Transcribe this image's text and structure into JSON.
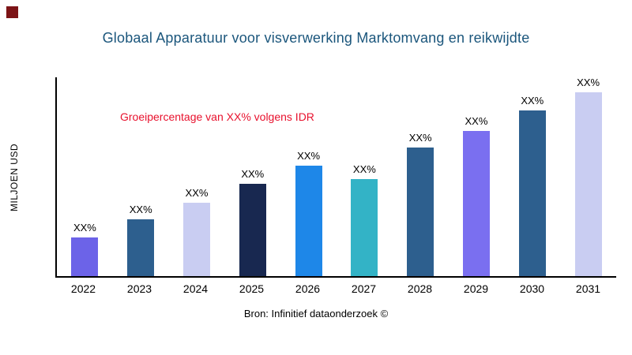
{
  "title": "Globaal Apparatuur voor visverwerking Marktomvang en reikwijdte",
  "annotation": "Groeipercentage van XX% volgens IDR",
  "source": "Bron: Infinitief dataonderzoek ©",
  "colors": {
    "title_text": "#1b567c",
    "annotation_text": "#e8112d",
    "logo_square": "#7c1416",
    "axis": "#000000"
  },
  "chart_data": {
    "type": "bar",
    "title": "Globaal Apparatuur voor visverwerking Marktomvang en reikwijdte",
    "xlabel": "",
    "ylabel": "MILJOEN USD",
    "categories": [
      "2022",
      "2023",
      "2024",
      "2025",
      "2026",
      "2027",
      "2028",
      "2029",
      "2030",
      "2031"
    ],
    "values": [
      21,
      31,
      40,
      50,
      60,
      53,
      70,
      79,
      90,
      100
    ],
    "value_note": "bar heights as percent of tallest bar; actual values redacted as XX% in source image",
    "bar_labels": [
      "XX%",
      "XX%",
      "XX%",
      "XX%",
      "XX%",
      "XX%",
      "XX%",
      "XX%",
      "XX%",
      "XX%"
    ],
    "bar_colors": [
      "#6c63e8",
      "#2d5f8e",
      "#c9cdf2",
      "#182850",
      "#1e87e8",
      "#33b3c6",
      "#2d5f8e",
      "#7a6ff0",
      "#2d5f8e",
      "#c9cdf2"
    ],
    "grid": false,
    "legend": false,
    "annotation": "Groeipercentage van XX% volgens IDR"
  }
}
